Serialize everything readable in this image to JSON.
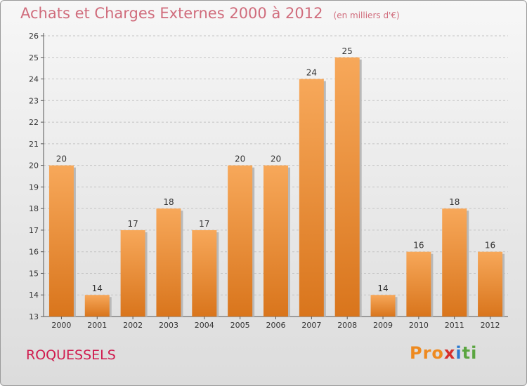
{
  "header": {
    "title": "Achats et Charges Externes 2000 à 2012",
    "unit": "(en milliers d'€)"
  },
  "footer": {
    "town": "ROQUESSELS",
    "logo_parts": [
      "Pro",
      "x",
      "i",
      "ti"
    ]
  },
  "chart_data": {
    "type": "bar",
    "title": "Achats et Charges Externes 2000 à 2012",
    "subtitle": "(en milliers d'€)",
    "categories": [
      "2000",
      "2001",
      "2002",
      "2003",
      "2004",
      "2005",
      "2006",
      "2007",
      "2008",
      "2009",
      "2010",
      "2011",
      "2012"
    ],
    "values": [
      20,
      14,
      17,
      18,
      17,
      20,
      20,
      24,
      25,
      14,
      16,
      18,
      16
    ],
    "ylim": [
      13,
      26
    ],
    "yticks": [
      13,
      14,
      15,
      16,
      17,
      18,
      19,
      20,
      21,
      22,
      23,
      24,
      25,
      26
    ],
    "grid": "horizontal dashed",
    "colors": {
      "bar_light": "#f7a85a",
      "bar_dark": "#d9751c",
      "axis": "#555555",
      "text": "#333333"
    }
  }
}
